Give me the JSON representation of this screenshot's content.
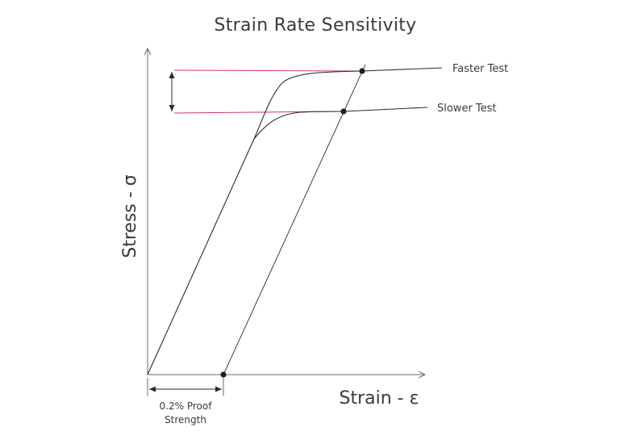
{
  "title": "Strain Rate Sensitivity",
  "x_axis_label": "Strain - ε",
  "y_axis_label": "Stress - σ",
  "curves": [
    {
      "name": "faster-test",
      "label": "Faster Test"
    },
    {
      "name": "slower-test",
      "label": "Slower Test"
    }
  ],
  "proof_label": {
    "line1": "0.2% Proof",
    "line2": "Strength"
  },
  "colors": {
    "curve": "#2b2b2b",
    "axis": "#6b6b6b",
    "guide_line": "#d6336c",
    "text": "#3a3a3a"
  }
}
